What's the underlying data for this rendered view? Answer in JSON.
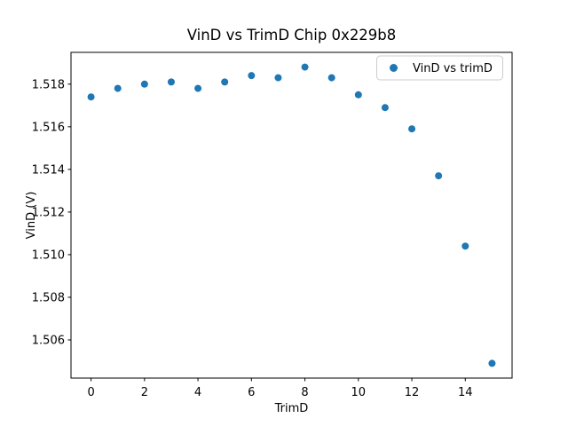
{
  "chart_data": {
    "type": "scatter",
    "title": "VinD vs TrimD Chip 0x229b8",
    "xlabel": "TrimD",
    "ylabel": "VinD (V)",
    "series": [
      {
        "name": "VinD vs trimD",
        "color": "#1f77b4",
        "x": [
          0,
          1,
          2,
          3,
          4,
          5,
          6,
          7,
          8,
          9,
          10,
          11,
          12,
          13,
          14,
          15
        ],
        "y": [
          1.5174,
          1.5178,
          1.518,
          1.5181,
          1.5178,
          1.5181,
          1.5184,
          1.5183,
          1.5188,
          1.5183,
          1.5175,
          1.5169,
          1.5159,
          1.5137,
          1.5104,
          1.5049
        ]
      }
    ],
    "xlim": [
      -0.75,
      15.75
    ],
    "ylim": [
      1.50421,
      1.51949
    ],
    "xticks": {
      "values": [
        0,
        2,
        4,
        6,
        8,
        10,
        12,
        14
      ],
      "labels": [
        "0",
        "2",
        "4",
        "6",
        "8",
        "10",
        "12",
        "14"
      ]
    },
    "yticks": {
      "values": [
        1.506,
        1.508,
        1.51,
        1.512,
        1.514,
        1.516,
        1.518
      ],
      "labels": [
        "1.506",
        "1.508",
        "1.510",
        "1.512",
        "1.514",
        "1.516",
        "1.518"
      ]
    },
    "grid": false,
    "legend": {
      "position": "upper right",
      "entries": [
        "VinD vs trimD"
      ]
    },
    "colors": {
      "spine": "#000000",
      "legend_border": "#cccccc",
      "background": "#ffffff"
    }
  }
}
